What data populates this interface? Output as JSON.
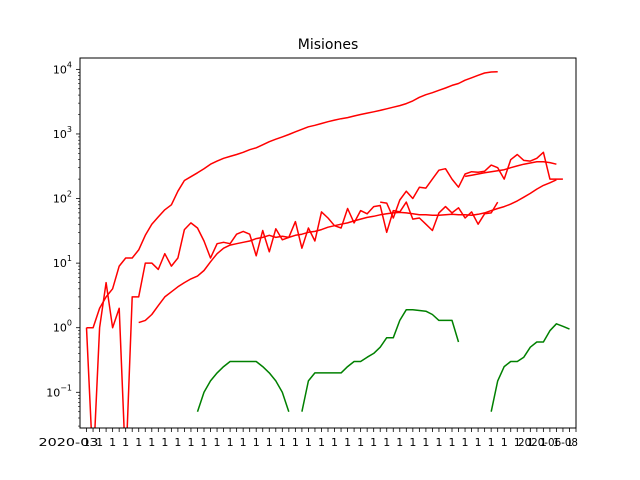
{
  "chart_data": {
    "type": "line",
    "title": "Misiones",
    "xlabel": "",
    "ylabel": "",
    "y_scale": "log",
    "ylim": [
      0.028,
      15000
    ],
    "xlim": [
      -1,
      75
    ],
    "grid": false,
    "legend": "none",
    "y_tick_values": [
      0.1,
      1,
      10,
      100,
      1000,
      10000
    ],
    "y_tick_labels": [
      {
        "base": "10",
        "exp": "−1"
      },
      {
        "base": "10",
        "exp": "0"
      },
      {
        "base": "10",
        "exp": "1"
      },
      {
        "base": "10",
        "exp": "2"
      },
      {
        "base": "10",
        "exp": "3"
      },
      {
        "base": "10",
        "exp": "4"
      }
    ],
    "x_tick_count": 76,
    "x_tick_text_left": "2020-03",
    "x_tick_text_right": "2020-06-08",
    "series": [
      {
        "color": "#ff0000",
        "x": [
          0,
          1,
          2,
          3,
          4,
          5,
          6,
          7,
          8,
          9,
          10,
          11,
          12,
          13,
          14,
          15,
          16,
          17,
          18,
          19,
          20,
          21,
          22,
          23,
          24,
          25,
          26,
          27,
          28,
          29,
          30,
          31,
          32,
          33,
          34,
          35,
          36,
          37,
          38,
          39,
          40,
          41,
          42,
          43,
          44,
          45,
          46,
          47,
          48,
          49,
          50,
          51,
          52,
          53,
          54,
          55,
          56,
          57,
          58,
          59,
          60,
          61,
          62,
          63,
          64,
          65,
          66,
          67,
          68,
          69,
          70,
          71,
          72
        ],
        "values": [
          1,
          1,
          2,
          3,
          4,
          9,
          12,
          12,
          16,
          27,
          40,
          52,
          67,
          80,
          130,
          190,
          218,
          250,
          290,
          340,
          380,
          420,
          450,
          480,
          520,
          570,
          610,
          680,
          760,
          830,
          900,
          980,
          1080,
          1180,
          1290,
          1360,
          1450,
          1550,
          1640,
          1720,
          1790,
          1900,
          2000,
          2100,
          2200,
          2320,
          2450,
          2600,
          2750,
          2950,
          3250,
          3700,
          4050,
          4350,
          4750,
          5150,
          5650,
          6050,
          6800,
          7400,
          8100,
          8800,
          9100,
          9200,
          null,
          null,
          null,
          null,
          null,
          null,
          null,
          null,
          null
        ]
      },
      {
        "color": "#ff0000",
        "x": [
          0,
          1,
          2,
          3,
          4,
          5,
          6,
          7,
          8,
          9,
          10,
          11,
          12,
          13,
          14,
          15,
          16,
          17,
          18,
          19,
          20,
          21,
          22,
          23,
          24,
          25,
          26,
          27,
          28,
          29,
          30,
          31,
          32,
          33,
          34,
          35,
          36,
          37,
          38,
          39,
          40,
          41,
          42,
          43,
          44,
          45,
          46,
          47,
          48,
          49,
          50,
          51,
          52,
          53,
          54,
          55,
          56,
          57,
          58,
          59,
          60,
          61,
          62,
          63
        ],
        "values": [
          1,
          0,
          1,
          5,
          1,
          2,
          0,
          3,
          3,
          10,
          10,
          8,
          14,
          9,
          12,
          33,
          42,
          35,
          22,
          12,
          20,
          21,
          20,
          28,
          31,
          28,
          13,
          32,
          15,
          34,
          23,
          25,
          44,
          17,
          35,
          22,
          62,
          50,
          38,
          35,
          70,
          42,
          65,
          58,
          75,
          78,
          30,
          65,
          62,
          88,
          48,
          50,
          40,
          32,
          60,
          75,
          60,
          72,
          50,
          62,
          40,
          58,
          60,
          88
        ]
      },
      {
        "color": "#ff0000",
        "x": [
          8,
          9,
          10,
          11,
          12,
          13,
          14,
          15,
          16,
          17,
          18,
          19,
          20,
          21,
          22,
          23,
          24,
          25,
          26,
          27,
          28,
          29,
          30,
          31,
          32,
          33,
          34,
          35,
          36,
          37,
          38,
          39,
          40,
          41,
          42,
          43,
          44,
          45,
          46,
          47,
          48,
          49,
          50,
          51,
          52,
          53,
          54,
          55,
          56,
          57,
          58,
          59,
          60,
          61,
          62,
          63,
          64,
          65,
          66,
          67,
          68,
          69,
          70,
          71,
          72
        ],
        "values": [
          1.2,
          1.3,
          1.6,
          2.2,
          3.0,
          3.6,
          4.3,
          5.0,
          5.7,
          6.3,
          7.7,
          10.5,
          14,
          17,
          19,
          20,
          21,
          22,
          24,
          25,
          27,
          25,
          26,
          25,
          27,
          28,
          30,
          31,
          33,
          36,
          38,
          40,
          42,
          45,
          48,
          51,
          53,
          56,
          58,
          60,
          61,
          60,
          58,
          56,
          56,
          55,
          55,
          56,
          57,
          56,
          56,
          55,
          57,
          60,
          65,
          70,
          75,
          82,
          92,
          105,
          120,
          140,
          160,
          175,
          195
        ]
      },
      {
        "color": "#ff0000",
        "x": [
          45,
          46,
          47,
          48,
          49,
          50,
          51,
          52,
          53,
          54,
          55,
          56,
          57,
          58,
          59,
          60,
          61,
          62,
          63,
          64,
          65,
          66,
          67,
          68,
          69,
          70,
          71,
          72,
          73,
          74,
          75
        ],
        "values": [
          88,
          85,
          50,
          95,
          130,
          100,
          150,
          145,
          200,
          275,
          290,
          200,
          150,
          240,
          260,
          255,
          265,
          330,
          300,
          200,
          400,
          480,
          390,
          380,
          420,
          520,
          200,
          200,
          200,
          null,
          null
        ]
      },
      {
        "color": "#ff0000",
        "x": [
          58,
          59,
          60,
          61,
          62,
          63,
          64,
          65,
          66,
          67,
          68,
          69,
          70,
          71,
          72,
          73,
          74
        ],
        "values": [
          220,
          230,
          240,
          250,
          260,
          270,
          280,
          300,
          320,
          340,
          355,
          370,
          370,
          360,
          340,
          null,
          null
        ]
      },
      {
        "color": "#008000",
        "x": [
          17,
          18,
          19,
          20,
          21,
          22,
          23,
          24,
          25,
          26,
          27,
          28,
          29,
          30,
          31
        ],
        "values": [
          0.05,
          0.1,
          0.15,
          0.2,
          0.25,
          0.3,
          0.3,
          0.3,
          0.3,
          0.3,
          0.25,
          0.2,
          0.15,
          0.1,
          0.05
        ]
      },
      {
        "color": "#008000",
        "x": [
          33,
          34,
          35,
          36,
          37,
          38,
          39,
          40,
          41,
          42,
          43,
          44,
          45,
          46,
          47,
          48,
          49,
          50,
          51,
          52,
          53,
          54,
          55,
          56,
          57,
          58,
          59
        ],
        "values": [
          0.05,
          0.15,
          0.2,
          0.2,
          0.2,
          0.2,
          0.2,
          0.25,
          0.3,
          0.3,
          0.35,
          0.4,
          0.5,
          0.7,
          0.7,
          1.3,
          1.9,
          1.9,
          1.85,
          1.8,
          1.6,
          1.3,
          1.3,
          1.3,
          0.6,
          null,
          null
        ]
      },
      {
        "color": "#008000",
        "x": [
          62,
          63,
          64,
          65,
          66,
          67,
          68,
          69,
          70,
          71,
          72,
          73,
          74
        ],
        "values": [
          0.05,
          0.15,
          0.25,
          0.3,
          0.3,
          0.35,
          0.5,
          0.6,
          0.6,
          0.9,
          1.15,
          1.05,
          0.95
        ]
      }
    ]
  }
}
